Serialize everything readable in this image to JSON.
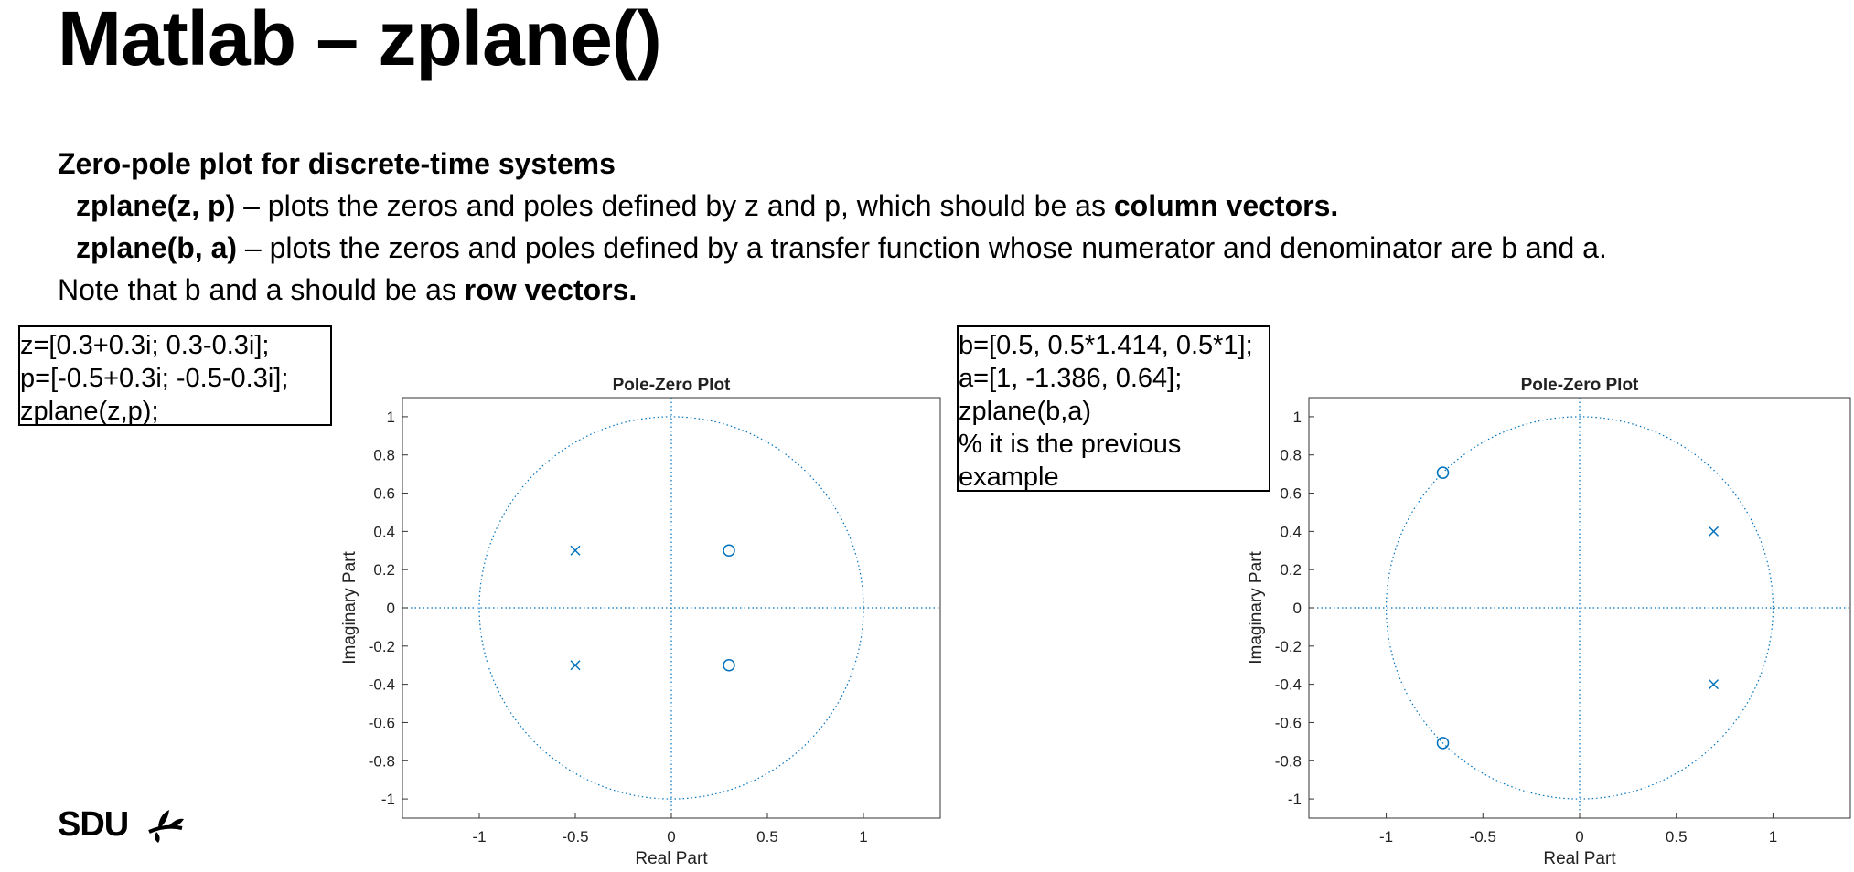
{
  "slide": {
    "title": "Matlab – zplane()",
    "lines": [
      {
        "parts": [
          {
            "t": "Zero-pole plot for discrete-time systems",
            "b": true
          }
        ]
      },
      {
        "indent": true,
        "parts": [
          {
            "t": "zplane(z, p)",
            "b": true
          },
          {
            "t": " – plots the zeros and poles defined by z and p, which should be as ",
            "b": false
          },
          {
            "t": "column vectors.",
            "b": true
          }
        ]
      },
      {
        "indent": true,
        "parts": [
          {
            "t": "zplane(b, a)",
            "b": true
          },
          {
            "t": " – plots the zeros and poles defined by a transfer function whose numerator and denominator are b and a.",
            "b": false
          }
        ]
      },
      {
        "parts": [
          {
            "t": "Note that b and a should be as ",
            "b": false
          },
          {
            "t": "row vectors.",
            "b": true
          }
        ]
      }
    ],
    "code_left": [
      "z=[0.3+0.3i; 0.3-0.3i];",
      "p=[-0.5+0.3i; -0.5-0.3i];",
      "zplane(z,p);"
    ],
    "code_right": [
      "b=[0.5, 0.5*1.414, 0.5*1];",
      "a=[1, -1.386, 0.64];",
      "zplane(b,a)",
      "% it is the previous",
      "example"
    ],
    "logo_text": "SDU",
    "logo_icon": "leaf-sprig-icon"
  },
  "chart_data": [
    {
      "type": "scatter",
      "title": "Pole-Zero Plot",
      "xlabel": "Real Part",
      "ylabel": "Imaginary Part",
      "xlim": [
        -1.4,
        1.4
      ],
      "ylim": [
        -1.1,
        1.1
      ],
      "xticks": [
        -1,
        -0.5,
        0,
        0.5,
        1
      ],
      "xtick_labels": [
        "-1",
        "-0.5",
        "0",
        "0.5",
        "1"
      ],
      "yticks": [
        1,
        0.8,
        0.6,
        0.4,
        0.2,
        0,
        -0.2,
        -0.4,
        -0.6,
        -0.8,
        -1
      ],
      "ytick_labels": [
        "1",
        "0.8",
        "0.6",
        "0.4",
        "0.2",
        "0",
        "-0.2",
        "-0.4",
        "-0.6",
        "-0.8",
        "-1"
      ],
      "unit_circle": true,
      "zeros": [
        [
          0.3,
          0.3
        ],
        [
          0.3,
          -0.3
        ]
      ],
      "poles": [
        [
          -0.5,
          0.3
        ],
        [
          -0.5,
          -0.3
        ]
      ],
      "color": "#0072BD"
    },
    {
      "type": "scatter",
      "title": "Pole-Zero Plot",
      "xlabel": "Real Part",
      "ylabel": "Imaginary Part",
      "xlim": [
        -1.4,
        1.4
      ],
      "ylim": [
        -1.1,
        1.1
      ],
      "xticks": [
        -1,
        -0.5,
        0,
        0.5,
        1
      ],
      "xtick_labels": [
        "-1",
        "-0.5",
        "0",
        "0.5",
        "1"
      ],
      "yticks": [
        1,
        0.8,
        0.6,
        0.4,
        0.2,
        0,
        -0.2,
        -0.4,
        -0.6,
        -0.8,
        -1
      ],
      "ytick_labels": [
        "1",
        "0.8",
        "0.6",
        "0.4",
        "0.2",
        "0",
        "-0.2",
        "-0.4",
        "-0.6",
        "-0.8",
        "-1"
      ],
      "unit_circle": true,
      "zeros": [
        [
          -0.707,
          0.707
        ],
        [
          -0.707,
          -0.707
        ]
      ],
      "poles": [
        [
          0.693,
          0.4
        ],
        [
          0.693,
          -0.4
        ]
      ],
      "color": "#0072BD"
    }
  ]
}
